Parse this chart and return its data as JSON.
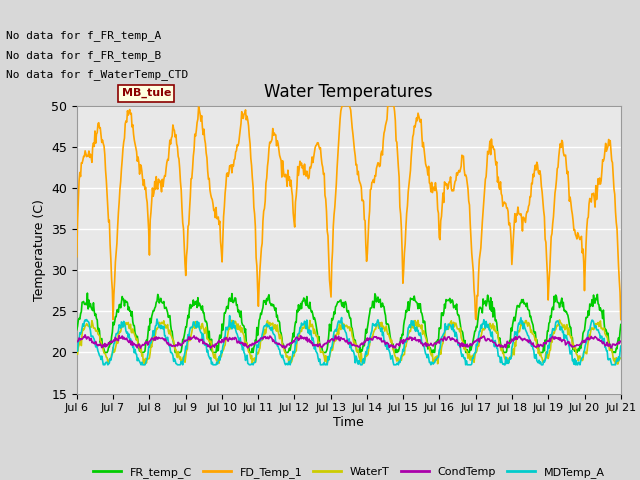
{
  "title": "Water Temperatures",
  "ylabel": "Temperature (C)",
  "xlabel": "Time",
  "ylim": [
    15,
    50
  ],
  "yticks": [
    15,
    20,
    25,
    30,
    35,
    40,
    45,
    50
  ],
  "xtick_labels": [
    "Jul 6",
    "Jul 7",
    "Jul 8",
    "Jul 9",
    "Jul 10",
    "Jul 11",
    "Jul 12",
    "Jul 13",
    "Jul 14",
    "Jul 15",
    "Jul 16",
    "Jul 17",
    "Jul 18",
    "Jul 19",
    "Jul 20",
    "Jul 21"
  ],
  "no_data_texts": [
    "No data for f_FR_temp_A",
    "No data for f_FR_temp_B",
    "No data for f_WaterTemp_CTD"
  ],
  "background_color": "#d8d8d8",
  "plot_bg_color": "#e8e8e8",
  "series": {
    "FR_temp_C": {
      "color": "#00cc00",
      "linewidth": 1.2
    },
    "FD_Temp_1": {
      "color": "#ffa500",
      "linewidth": 1.2
    },
    "WaterT": {
      "color": "#cccc00",
      "linewidth": 1.2
    },
    "CondTemp": {
      "color": "#aa00aa",
      "linewidth": 1.2
    },
    "MDTemp_A": {
      "color": "#00cccc",
      "linewidth": 1.2
    }
  },
  "legend_series": [
    "FR_temp_C",
    "FD_Temp_1",
    "WaterT",
    "CondTemp",
    "MDTemp_A"
  ],
  "legend_colors": [
    "#00cc00",
    "#ffa500",
    "#cccc00",
    "#aa00aa",
    "#00cccc"
  ]
}
